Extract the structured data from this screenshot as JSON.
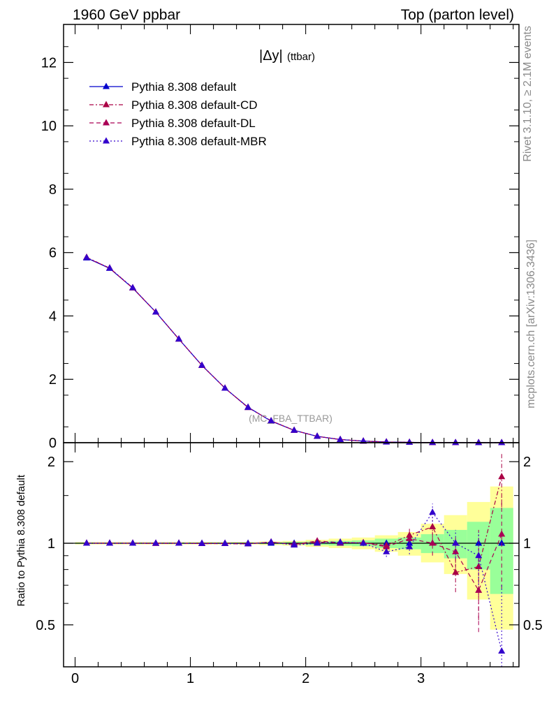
{
  "header": {
    "left": "1960 GeV ppbar",
    "right": "Top (parton level)"
  },
  "side": {
    "rivet": "Rivet 3.1.10, ≥ 2.1M events",
    "mcplots": "mcplots.cern.ch [arXiv:1306.3436]"
  },
  "chart_data": [
    {
      "type": "line",
      "title": "|Δy|",
      "title_sub": "(ttbar)",
      "watermark": "(MC_FBA_TTBAR)",
      "xlim": [
        -0.1,
        3.85
      ],
      "ylim": [
        0,
        13.2
      ],
      "yticks": [
        0,
        2,
        4,
        6,
        8,
        10,
        12
      ],
      "x": [
        0.1,
        0.3,
        0.5,
        0.7,
        0.9,
        1.1,
        1.3,
        1.5,
        1.7,
        1.9,
        2.1,
        2.3,
        2.5,
        2.7,
        2.9,
        3.1,
        3.3,
        3.5,
        3.7
      ],
      "series": [
        {
          "name": "Pythia 8.308 default",
          "color": "#0000cc",
          "dash": "",
          "values": [
            5.83,
            5.5,
            4.88,
            4.12,
            3.27,
            2.44,
            1.72,
            1.12,
            0.68,
            0.39,
            0.2,
            0.1,
            0.05,
            0.022,
            0.01,
            0.004,
            0.0017,
            0.0006,
            0.0002
          ]
        },
        {
          "name": "Pythia 8.308 default-CD",
          "color": "#aa0044",
          "dash": "6,3,2,3",
          "values": [
            5.85,
            5.51,
            4.89,
            4.12,
            3.27,
            2.44,
            1.72,
            1.11,
            0.69,
            0.39,
            0.2,
            0.1,
            0.05,
            0.022,
            0.011,
            0.0045,
            0.0016,
            0.0004,
            0.0004
          ]
        },
        {
          "name": "Pythia 8.308 default-DL",
          "color": "#aa0055",
          "dash": "6,4",
          "values": [
            5.84,
            5.51,
            4.88,
            4.12,
            3.27,
            2.44,
            1.72,
            1.11,
            0.69,
            0.39,
            0.2,
            0.1,
            0.05,
            0.022,
            0.01,
            0.004,
            0.0013,
            0.0004,
            0.0002
          ]
        },
        {
          "name": "Pythia 8.308 default-MBR",
          "color": "#3300cc",
          "dash": "2,3",
          "values": [
            5.84,
            5.51,
            4.89,
            4.12,
            3.27,
            2.44,
            1.72,
            1.11,
            0.69,
            0.39,
            0.2,
            0.1,
            0.05,
            0.02,
            0.01,
            0.005,
            0.0017,
            0.0005,
            0.0001
          ]
        }
      ]
    },
    {
      "type": "line",
      "ylabel": "Ratio to Pythia 8.308 default",
      "xlim": [
        -0.1,
        3.85
      ],
      "ylim": [
        0.35,
        2.35
      ],
      "yticks": [
        0.5,
        1,
        2
      ],
      "xticks": [
        0,
        1,
        2,
        3
      ],
      "bands": {
        "x_edges": [
          0.0,
          0.2,
          0.4,
          0.6,
          0.8,
          1.0,
          1.2,
          1.4,
          1.6,
          1.8,
          2.0,
          2.2,
          2.4,
          2.6,
          2.8,
          3.0,
          3.2,
          3.4,
          3.6,
          3.8
        ],
        "green": [
          [
            0.995,
            1.005
          ],
          [
            0.995,
            1.005
          ],
          [
            0.995,
            1.005
          ],
          [
            0.995,
            1.005
          ],
          [
            0.995,
            1.005
          ],
          [
            0.995,
            1.005
          ],
          [
            0.995,
            1.005
          ],
          [
            0.995,
            1.005
          ],
          [
            0.993,
            1.007
          ],
          [
            0.99,
            1.01
          ],
          [
            0.985,
            1.015
          ],
          [
            0.98,
            1.02
          ],
          [
            0.975,
            1.025
          ],
          [
            0.96,
            1.04
          ],
          [
            0.95,
            1.05
          ],
          [
            0.92,
            1.08
          ],
          [
            0.88,
            1.12
          ],
          [
            0.8,
            1.2
          ],
          [
            0.65,
            1.35
          ],
          [
            0.5,
            1.6
          ]
        ],
        "yellow": [
          [
            0.99,
            1.01
          ],
          [
            0.99,
            1.01
          ],
          [
            0.99,
            1.01
          ],
          [
            0.99,
            1.01
          ],
          [
            0.99,
            1.01
          ],
          [
            0.99,
            1.01
          ],
          [
            0.99,
            1.01
          ],
          [
            0.99,
            1.01
          ],
          [
            0.985,
            1.015
          ],
          [
            0.98,
            1.02
          ],
          [
            0.97,
            1.03
          ],
          [
            0.96,
            1.04
          ],
          [
            0.95,
            1.05
          ],
          [
            0.93,
            1.07
          ],
          [
            0.9,
            1.1
          ],
          [
            0.85,
            1.18
          ],
          [
            0.77,
            1.27
          ],
          [
            0.62,
            1.42
          ],
          [
            0.48,
            1.62
          ],
          [
            0.35,
            2.0
          ]
        ]
      },
      "x": [
        0.1,
        0.3,
        0.5,
        0.7,
        0.9,
        1.1,
        1.3,
        1.5,
        1.7,
        1.9,
        2.1,
        2.3,
        2.5,
        2.7,
        2.9,
        3.1,
        3.3,
        3.5,
        3.7
      ],
      "series": [
        {
          "name": "Pythia 8.308 default-CD",
          "color": "#aa0044",
          "dash": "6,3,2,3",
          "values": [
            1.0,
            1.0,
            1.0,
            0.998,
            1.0,
            0.997,
            0.997,
            0.995,
            1.01,
            0.99,
            1.01,
            1.005,
            1.005,
            0.98,
            1.07,
            1.15,
            0.78,
            0.82,
            1.76
          ],
          "err": [
            0.005,
            0.005,
            0.005,
            0.005,
            0.005,
            0.005,
            0.005,
            0.006,
            0.008,
            0.01,
            0.015,
            0.02,
            0.025,
            0.04,
            0.06,
            0.1,
            0.12,
            0.3,
            0.4
          ]
        },
        {
          "name": "Pythia 8.308 default-DL",
          "color": "#aa0055",
          "dash": "6,4",
          "values": [
            1.0,
            1.0,
            1.0,
            1.0,
            1.0,
            0.997,
            0.998,
            0.995,
            1.01,
            0.99,
            1.02,
            1.005,
            1.005,
            0.97,
            1.04,
            1.0,
            0.93,
            0.67,
            1.08
          ],
          "err": [
            0.005,
            0.005,
            0.005,
            0.005,
            0.005,
            0.005,
            0.005,
            0.006,
            0.008,
            0.01,
            0.015,
            0.02,
            0.025,
            0.04,
            0.06,
            0.1,
            0.12,
            0.2,
            0.4
          ]
        },
        {
          "name": "Pythia 8.308 default-MBR",
          "color": "#3300cc",
          "dash": "2,3",
          "values": [
            1.0,
            1.0,
            1.0,
            1.0,
            1.0,
            0.998,
            0.998,
            0.995,
            1.01,
            0.985,
            1.0,
            1.01,
            1.0,
            0.93,
            0.97,
            1.3,
            1.0,
            0.9,
            0.4
          ],
          "err": [
            0.005,
            0.005,
            0.005,
            0.005,
            0.005,
            0.005,
            0.005,
            0.006,
            0.008,
            0.01,
            0.015,
            0.02,
            0.025,
            0.04,
            0.06,
            0.1,
            0.12,
            0.2,
            0.3
          ]
        }
      ]
    }
  ]
}
